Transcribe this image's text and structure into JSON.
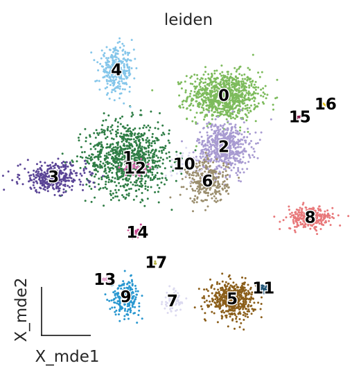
{
  "chart_data": {
    "type": "scatter",
    "title": "leiden",
    "xlabel": "X_mde1",
    "ylabel": "X_mde2",
    "xlim": [
      -3.6,
      3.6
    ],
    "ylim": [
      -3.4,
      3.8
    ],
    "grid": false,
    "legend": "on data",
    "clusters": [
      {
        "name": "0",
        "color": "#7dbb5c",
        "x": 0.75,
        "y": 2.45,
        "sx": 0.38,
        "sy": 0.28,
        "n": 900
      },
      {
        "name": "1",
        "color": "#2e7d45",
        "x": -1.3,
        "y": 1.0,
        "sx": 0.45,
        "sy": 0.42,
        "n": 900
      },
      {
        "name": "2",
        "color": "#a89bd1",
        "x": 0.75,
        "y": 1.25,
        "sx": 0.28,
        "sy": 0.3,
        "n": 600
      },
      {
        "name": "3",
        "color": "#5a4496",
        "x": -2.9,
        "y": 0.55,
        "sx": 0.35,
        "sy": 0.17,
        "n": 350
      },
      {
        "name": "4",
        "color": "#85c6ea",
        "x": -1.55,
        "y": 3.05,
        "sx": 0.18,
        "sy": 0.25,
        "n": 300
      },
      {
        "name": "5",
        "color": "#8b5e1a",
        "x": 0.93,
        "y": -2.3,
        "sx": 0.24,
        "sy": 0.2,
        "n": 500
      },
      {
        "name": "6",
        "color": "#9b8e6e",
        "x": 0.4,
        "y": 0.45,
        "sx": 0.22,
        "sy": 0.25,
        "n": 300
      },
      {
        "name": "7",
        "color": "#dcdaf0",
        "x": -0.35,
        "y": -2.35,
        "sx": 0.1,
        "sy": 0.13,
        "n": 70
      },
      {
        "name": "8",
        "color": "#e8787a",
        "x": 2.6,
        "y": -0.4,
        "sx": 0.25,
        "sy": 0.13,
        "n": 260
      },
      {
        "name": "9",
        "color": "#2997d0",
        "x": -1.35,
        "y": -2.25,
        "sx": 0.15,
        "sy": 0.2,
        "n": 220
      },
      {
        "name": "10",
        "color": "#dcdaf0",
        "x": -0.1,
        "y": 0.85,
        "sx": 0.2,
        "sy": 0.15,
        "n": 50
      },
      {
        "name": "11",
        "color": "#25597a",
        "x": 1.6,
        "y": -2.05,
        "sx": 0.06,
        "sy": 0.04,
        "n": 40
      },
      {
        "name": "12",
        "color": "#d56aae",
        "x": -1.15,
        "y": 0.75,
        "sx": 0.13,
        "sy": 0.1,
        "n": 60
      },
      {
        "name": "13",
        "color": "#e4a8cf",
        "x": -1.8,
        "y": -1.85,
        "sx": 0.06,
        "sy": 0.04,
        "n": 30
      },
      {
        "name": "14",
        "color": "#c7438d",
        "x": -1.1,
        "y": -0.75,
        "sx": 0.1,
        "sy": 0.06,
        "n": 40
      },
      {
        "name": "15",
        "color": "#8b2252",
        "x": 2.38,
        "y": 1.95,
        "sx": 0.03,
        "sy": 0.02,
        "n": 10
      },
      {
        "name": "16",
        "color": "#e6c61f",
        "x": 2.93,
        "y": 2.25,
        "sx": 0.02,
        "sy": 0.02,
        "n": 5
      },
      {
        "name": "17",
        "color": "#b8b44a",
        "x": -0.7,
        "y": -1.45,
        "sx": 0.03,
        "sy": 0.03,
        "n": 6
      }
    ]
  }
}
